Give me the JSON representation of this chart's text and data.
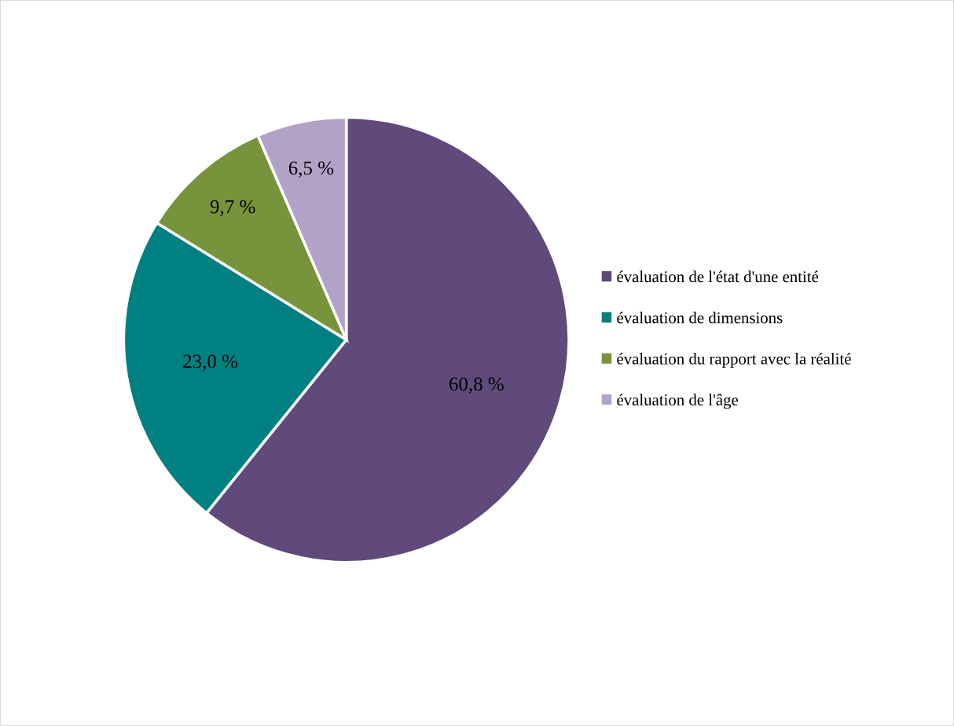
{
  "chart_data": {
    "type": "pie",
    "categories": [
      "évaluation de l'état d'une entité",
      "évaluation de dimensions",
      "évaluation du rapport avec la réalité",
      "évaluation de l'âge"
    ],
    "values": [
      60.8,
      23.0,
      9.7,
      6.5
    ],
    "value_labels": [
      "60,8 %",
      "23,0 %",
      "9,7 %",
      "6,5 %"
    ],
    "colors": [
      "#604a7b",
      "#008080",
      "#77933c",
      "#b3a2c7"
    ],
    "legend": "right"
  }
}
